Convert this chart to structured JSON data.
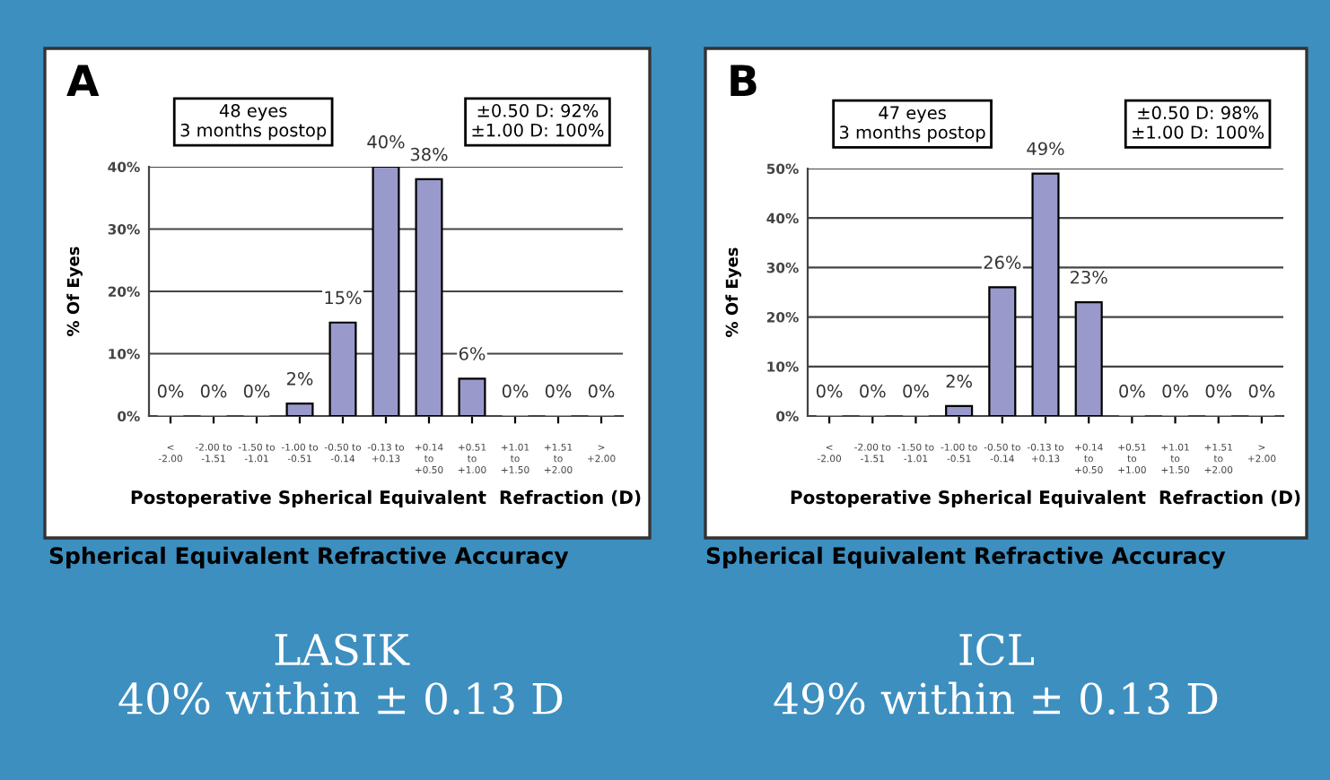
{
  "chart_data": [
    {
      "type": "bar",
      "title": "A",
      "xlabel": "Postoperative Spherical Equivalent  Refraction (D)",
      "ylabel": "% Of Eyes",
      "categories": [
        "<\n-2.00",
        "-2.00 to\n-1.51",
        "-1.50 to\n-1.01",
        "-1.00 to\n-0.51",
        "-0.50 to\n-0.14",
        "-0.13 to\n+0.13",
        "+0.14\nto\n+0.50",
        "+0.51\nto\n+1.00",
        "+1.01\nto\n+1.50",
        "+1.51\nto\n+2.00",
        ">\n+2.00"
      ],
      "values": [
        0,
        0,
        0,
        2,
        15,
        40,
        38,
        6,
        0,
        0,
        0
      ],
      "value_labels": [
        "0%",
        "0%",
        "0%",
        "2%",
        "15%",
        "40%",
        "38%",
        "6%",
        "0%",
        "0%",
        "0%"
      ],
      "color": "#9999cc",
      "ylim": [
        0,
        40
      ],
      "yticks": [
        {
          "value": 0,
          "label": "0%"
        },
        {
          "value": 10,
          "label": "10%"
        },
        {
          "value": 20,
          "label": "20%"
        },
        {
          "value": 30,
          "label": "30%"
        },
        {
          "value": 40,
          "label": "40%"
        }
      ],
      "grid": "y",
      "annotations": [
        "48 eyes\n3 months postop",
        "±0.50 D: 92%\n±1.00 D: 100%",
        "Spherical Equivalent Refractive Accuracy",
        "LASIK\n40% within ± 0.13 D"
      ]
    },
    {
      "type": "bar",
      "title": "B",
      "xlabel": "Postoperative Spherical Equivalent  Refraction (D)",
      "ylabel": "% Of Eyes",
      "categories": [
        "<\n-2.00",
        "-2.00 to\n-1.51",
        "-1.50 to\n-1.01",
        "-1.00 to\n-0.51",
        "-0.50 to\n-0.14",
        "-0.13 to\n+0.13",
        "+0.14\nto\n+0.50",
        "+0.51\nto\n+1.00",
        "+1.01\nto\n+1.50",
        "+1.51\nto\n+2.00",
        ">\n+2.00"
      ],
      "values": [
        0,
        0,
        0,
        2,
        26,
        49,
        23,
        0,
        0,
        0,
        0
      ],
      "value_labels": [
        "0%",
        "0%",
        "0%",
        "2%",
        "26%",
        "49%",
        "23%",
        "0%",
        "0%",
        "0%",
        "0%"
      ],
      "color": "#9999cc",
      "ylim": [
        0,
        50
      ],
      "yticks": [
        {
          "value": 0,
          "label": "0%"
        },
        {
          "value": 10,
          "label": "10%"
        },
        {
          "value": 20,
          "label": "20%"
        },
        {
          "value": 30,
          "label": "30%"
        },
        {
          "value": 40,
          "label": "40%"
        },
        {
          "value": 50,
          "label": "50%"
        }
      ],
      "grid": "y",
      "annotations": [
        "47 eyes\n3 months postop",
        "±0.50 D: 98%\n±1.00 D: 100%",
        "Spherical Equivalent Refractive Accuracy",
        "ICL\n49% within ± 0.13 D"
      ]
    }
  ]
}
